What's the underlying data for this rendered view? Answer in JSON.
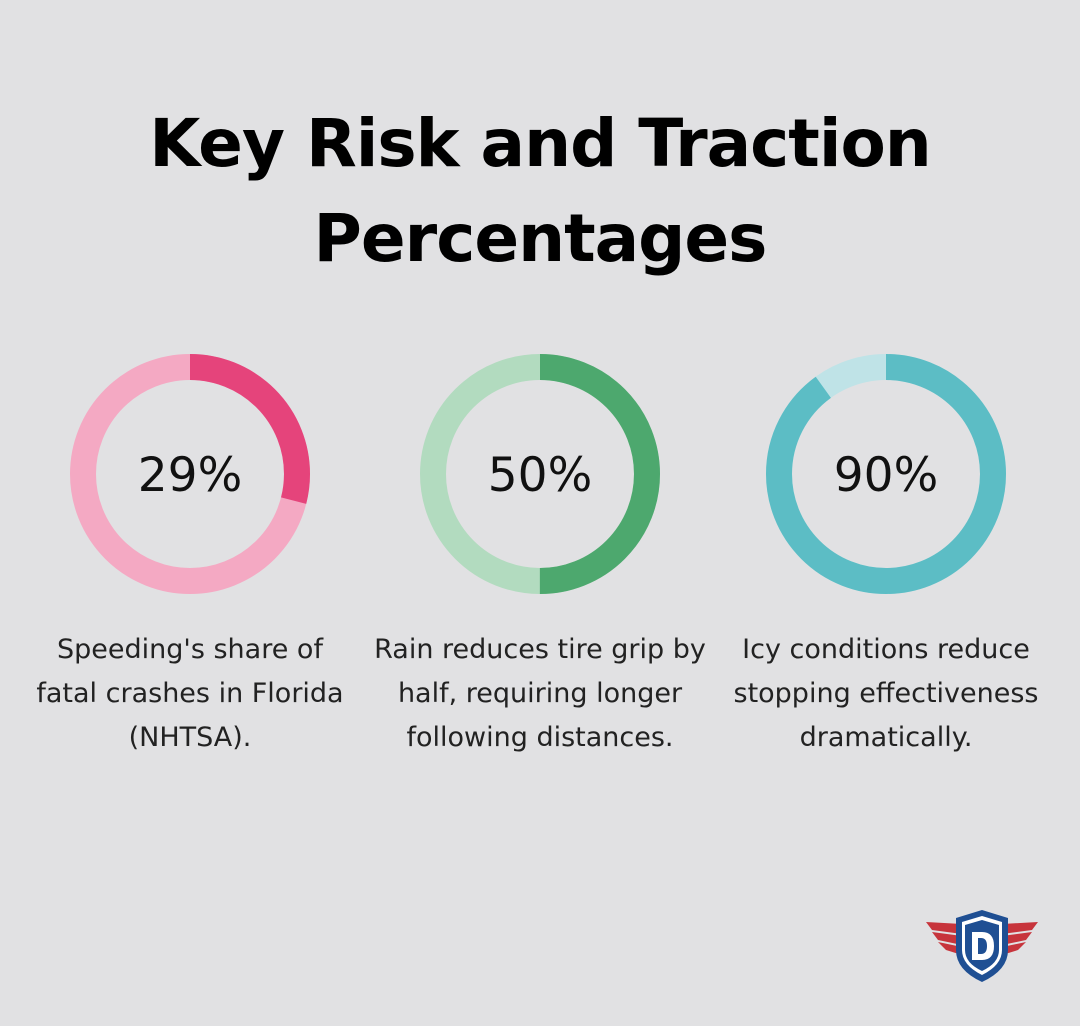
{
  "title": {
    "line1": "Key Risk and Traction",
    "line2": "Percentages"
  },
  "chart_data": [
    {
      "type": "pie",
      "value_label": "29%",
      "values": [
        29,
        71
      ],
      "description": "Speeding's share of fatal crashes in Florida (NHTSA).",
      "colors": {
        "filled": "#e5447b",
        "track": "#f4a9c3"
      }
    },
    {
      "type": "pie",
      "value_label": "50%",
      "values": [
        50,
        50
      ],
      "description": "Rain reduces tire grip by half, requiring longer following distances.",
      "colors": {
        "filled": "#4da86e",
        "track": "#b2dbbf"
      }
    },
    {
      "type": "pie",
      "value_label": "90%",
      "values": [
        90,
        10
      ],
      "description": "Icy conditions reduce stopping effectiveness dramatically.",
      "colors": {
        "filled": "#5cbdc5",
        "track": "#bfe3e7"
      }
    }
  ],
  "logo": {
    "letter": "D",
    "colors": {
      "shield": "#1f4f93",
      "wings": "#c7343c",
      "inner": "#ffffff"
    }
  }
}
